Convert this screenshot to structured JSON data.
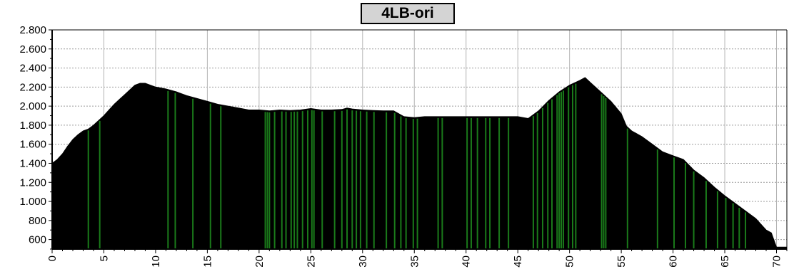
{
  "chart_data": {
    "type": "area",
    "title": "4LB-ori",
    "xlabel": "",
    "ylabel": "",
    "xlim": [
      0,
      71
    ],
    "ylim": [
      500,
      2800
    ],
    "x_ticks": [
      0,
      5,
      10,
      15,
      20,
      25,
      30,
      35,
      40,
      45,
      50,
      55,
      60,
      65,
      70
    ],
    "x_tick_labels": [
      "0",
      "5",
      "10",
      "15",
      "20",
      "25",
      "30",
      "35",
      "40",
      "45",
      "50",
      "55",
      "60",
      "65",
      "70"
    ],
    "y_ticks": [
      600,
      800,
      1000,
      1200,
      1400,
      1600,
      1800,
      2000,
      2200,
      2400,
      2600,
      2800
    ],
    "y_tick_labels": [
      "600",
      "800",
      "1.000",
      "1.200",
      "1.400",
      "1.600",
      "1.800",
      "2.000",
      "2.200",
      "2.400",
      "2.600",
      "2.800"
    ],
    "grid": true,
    "series": [
      {
        "color": "#000000",
        "points": [
          [
            0,
            1400
          ],
          [
            0.5,
            1440
          ],
          [
            1,
            1500
          ],
          [
            1.5,
            1580
          ],
          [
            2,
            1650
          ],
          [
            2.5,
            1700
          ],
          [
            3,
            1740
          ],
          [
            3.5,
            1760
          ],
          [
            4,
            1800
          ],
          [
            4.5,
            1850
          ],
          [
            5,
            1900
          ],
          [
            5.5,
            1960
          ],
          [
            6,
            2020
          ],
          [
            6.5,
            2070
          ],
          [
            7,
            2120
          ],
          [
            7.5,
            2170
          ],
          [
            8,
            2220
          ],
          [
            8.5,
            2240
          ],
          [
            9,
            2240
          ],
          [
            9.5,
            2220
          ],
          [
            10,
            2200
          ],
          [
            11,
            2180
          ],
          [
            12,
            2150
          ],
          [
            13,
            2110
          ],
          [
            14,
            2080
          ],
          [
            15,
            2050
          ],
          [
            16,
            2020
          ],
          [
            17,
            2000
          ],
          [
            18,
            1980
          ],
          [
            19,
            1960
          ],
          [
            20,
            1960
          ],
          [
            21,
            1950
          ],
          [
            22,
            1960
          ],
          [
            23,
            1955
          ],
          [
            24,
            1960
          ],
          [
            25,
            1975
          ],
          [
            26,
            1960
          ],
          [
            27,
            1960
          ],
          [
            28,
            1965
          ],
          [
            28.5,
            1980
          ],
          [
            29,
            1970
          ],
          [
            30,
            1960
          ],
          [
            31,
            1955
          ],
          [
            32,
            1950
          ],
          [
            33,
            1950
          ],
          [
            34,
            1890
          ],
          [
            35,
            1880
          ],
          [
            36,
            1890
          ],
          [
            37,
            1890
          ],
          [
            38,
            1890
          ],
          [
            39,
            1890
          ],
          [
            40,
            1890
          ],
          [
            41,
            1890
          ],
          [
            42,
            1890
          ],
          [
            43,
            1890
          ],
          [
            44,
            1890
          ],
          [
            45,
            1890
          ],
          [
            46,
            1870
          ],
          [
            47,
            1950
          ],
          [
            48,
            2060
          ],
          [
            49,
            2150
          ],
          [
            50,
            2220
          ],
          [
            51,
            2270
          ],
          [
            51.5,
            2300
          ],
          [
            52,
            2250
          ],
          [
            53,
            2150
          ],
          [
            54,
            2050
          ],
          [
            55,
            1920
          ],
          [
            55.5,
            1790
          ],
          [
            56,
            1740
          ],
          [
            57,
            1680
          ],
          [
            58,
            1600
          ],
          [
            59,
            1520
          ],
          [
            60,
            1480
          ],
          [
            61,
            1440
          ],
          [
            62,
            1330
          ],
          [
            63,
            1250
          ],
          [
            64,
            1150
          ],
          [
            65,
            1060
          ],
          [
            66,
            980
          ],
          [
            67,
            900
          ],
          [
            68,
            820
          ],
          [
            69,
            700
          ],
          [
            69.5,
            670
          ],
          [
            70,
            520
          ],
          [
            71,
            520
          ]
        ]
      }
    ],
    "markers": {
      "color": "#1a7a1a",
      "x": [
        3.5,
        4.6,
        11.2,
        11.9,
        13.6,
        15.3,
        16.3,
        20.6,
        20.8,
        21.0,
        21.5,
        22.2,
        22.6,
        23.1,
        23.4,
        23.7,
        24.2,
        24.7,
        25.1,
        25.3,
        26.1,
        27.3,
        28.0,
        28.5,
        29.0,
        29.4,
        29.8,
        30.4,
        31.1,
        32.3,
        33.1,
        33.7,
        34.2,
        34.9,
        35.3,
        37.3,
        37.7,
        40.1,
        40.5,
        41.1,
        41.9,
        42.3,
        43.2,
        44.1,
        46.5,
        46.9,
        47.4,
        47.9,
        48.3,
        48.8,
        49.0,
        49.2,
        49.4,
        49.9,
        50.3,
        50.6,
        53.1,
        53.3,
        53.5,
        55.6,
        58.5,
        60.1,
        61.2,
        62.0,
        63.2,
        64.3,
        65.1,
        65.8,
        66.4,
        67.0
      ]
    }
  }
}
